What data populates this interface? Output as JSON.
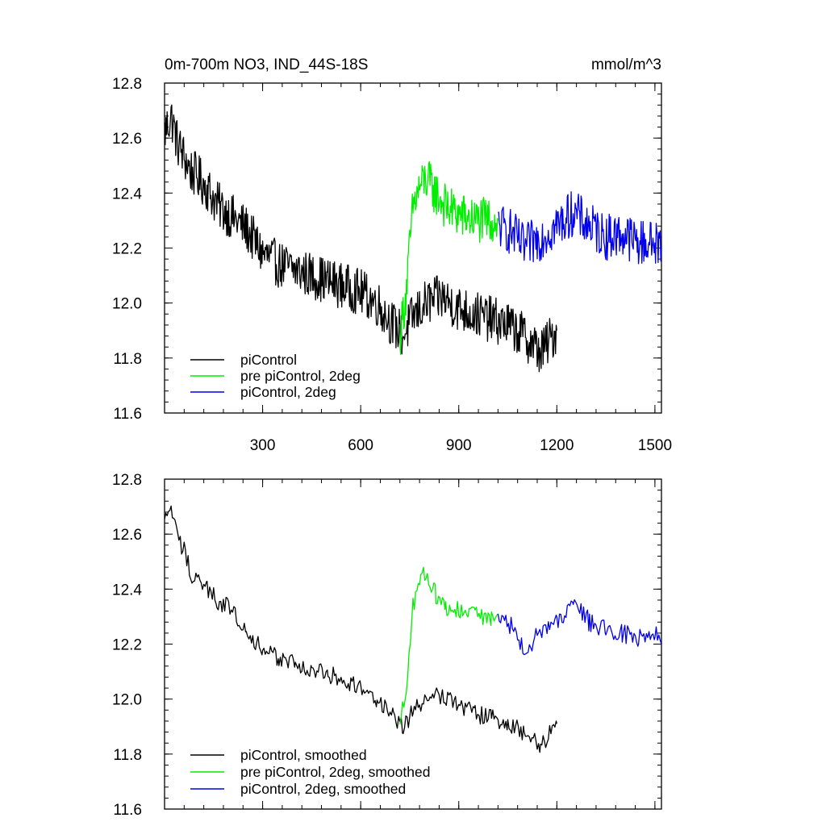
{
  "title": "0m-700m NO3, IND_44S-18S",
  "units": "mmol/m^3",
  "colors": {
    "piControl": "#000000",
    "pre_piControl_2deg": "#00ee00",
    "piControl_2deg": "#0000ee"
  },
  "chart_data": [
    {
      "type": "line",
      "title": "0m-700m NO3, IND_44S-18S",
      "units": "mmol/m^3",
      "xlim": [
        0,
        1520
      ],
      "ylim": [
        11.6,
        12.8
      ],
      "xticks": [
        "300",
        "600",
        "900",
        "1200",
        "1500"
      ],
      "yticks": [
        "11.6",
        "11.8",
        "12.0",
        "12.2",
        "12.4",
        "12.6",
        "12.8"
      ],
      "legend": [
        "piControl",
        "pre piControl, 2deg",
        "piControl, 2deg"
      ],
      "legend_position": "bottom-left",
      "series": [
        {
          "name": "piControl",
          "color": "#000000",
          "x": [
            0,
            20,
            40,
            60,
            80,
            100,
            130,
            160,
            200,
            250,
            300,
            350,
            400,
            450,
            500,
            550,
            600,
            650,
            700,
            730,
            760,
            800,
            850,
            900,
            950,
            1000,
            1050,
            1100,
            1150,
            1200
          ],
          "y": [
            12.62,
            12.68,
            12.58,
            12.53,
            12.48,
            12.46,
            12.42,
            12.36,
            12.32,
            12.27,
            12.18,
            12.14,
            12.12,
            12.1,
            12.08,
            12.06,
            12.04,
            12.0,
            11.92,
            11.88,
            11.95,
            12.0,
            12.02,
            11.98,
            11.96,
            11.94,
            11.92,
            11.88,
            11.82,
            11.9
          ]
        },
        {
          "name": "pre piControl, 2deg",
          "color": "#00ee00",
          "x": [
            720,
            740,
            760,
            780,
            800,
            830,
            860,
            900,
            950,
            1000,
            1020
          ],
          "y": [
            11.88,
            12.05,
            12.35,
            12.42,
            12.45,
            12.4,
            12.35,
            12.32,
            12.3,
            12.3,
            12.3
          ]
        },
        {
          "name": "piControl, 2deg",
          "color": "#0000ee",
          "x": [
            1020,
            1060,
            1100,
            1150,
            1200,
            1250,
            1300,
            1350,
            1400,
            1450,
            1500,
            1520
          ],
          "y": [
            12.28,
            12.26,
            12.2,
            12.24,
            12.28,
            12.33,
            12.28,
            12.24,
            12.25,
            12.22,
            12.22,
            12.2
          ]
        }
      ]
    },
    {
      "type": "line",
      "xlim": [
        0,
        1520
      ],
      "ylim": [
        11.6,
        12.8
      ],
      "yticks": [
        "11.6",
        "11.8",
        "12.0",
        "12.2",
        "12.4",
        "12.6",
        "12.8"
      ],
      "legend": [
        "piControl, smoothed",
        "pre piControl, 2deg, smoothed",
        "piControl, 2deg, smoothed"
      ],
      "legend_position": "bottom-left",
      "series": [
        {
          "name": "piControl, smoothed",
          "color": "#000000",
          "x": [
            0,
            20,
            40,
            60,
            80,
            100,
            130,
            160,
            200,
            250,
            300,
            350,
            400,
            450,
            500,
            550,
            600,
            650,
            700,
            730,
            760,
            800,
            850,
            900,
            950,
            1000,
            1050,
            1100,
            1150,
            1200
          ],
          "y": [
            12.64,
            12.7,
            12.58,
            12.54,
            12.46,
            12.44,
            12.4,
            12.36,
            12.33,
            12.26,
            12.17,
            12.15,
            12.13,
            12.1,
            12.09,
            12.07,
            12.04,
            12.0,
            11.93,
            11.89,
            11.96,
            12.0,
            12.02,
            11.98,
            11.95,
            11.93,
            11.91,
            11.88,
            11.83,
            11.91
          ]
        },
        {
          "name": "pre piControl, 2deg, smoothed",
          "color": "#00ee00",
          "x": [
            720,
            740,
            760,
            780,
            800,
            830,
            860,
            900,
            950,
            1000,
            1020
          ],
          "y": [
            11.89,
            12.06,
            12.34,
            12.44,
            12.46,
            12.38,
            12.34,
            12.32,
            12.31,
            12.3,
            12.31
          ]
        },
        {
          "name": "piControl, 2deg, smoothed",
          "color": "#0000ee",
          "x": [
            1020,
            1060,
            1100,
            1150,
            1200,
            1250,
            1300,
            1350,
            1400,
            1450,
            1500,
            1520
          ],
          "y": [
            12.29,
            12.27,
            12.18,
            12.24,
            12.28,
            12.36,
            12.28,
            12.25,
            12.24,
            12.22,
            12.24,
            12.2
          ]
        }
      ]
    }
  ]
}
